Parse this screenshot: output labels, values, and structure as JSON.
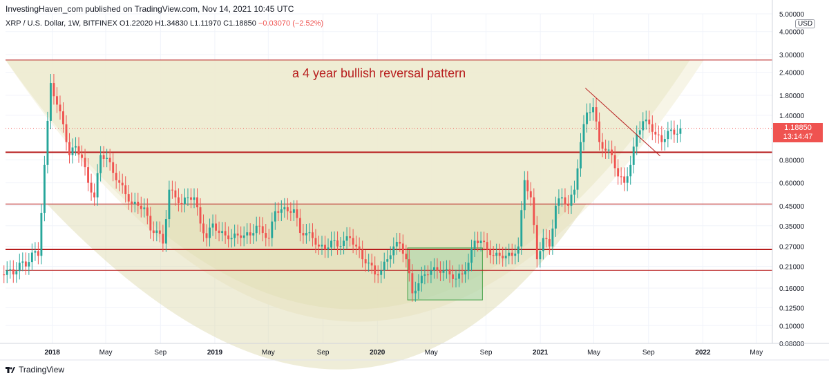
{
  "header": {
    "published": "InvestingHaven_com published on TradingView.com, Nov 14, 2021 10:45 UTC",
    "symbol": "XRP / U.S. Dollar, 1W, BITFINEX",
    "open": "O1.22020",
    "high": "H1.34830",
    "low": "L1.11970",
    "close": "C1.18850",
    "change": "−0.03070 (−2.52%)"
  },
  "annotation": "a 4 year bullish reversal pattern",
  "footer": {
    "brand": "TradingView"
  },
  "price_axis": {
    "currency": "USD",
    "last_price": "1.18850",
    "countdown": "13:14:47"
  },
  "colors": {
    "up": "#26a69a",
    "down": "#ef5350",
    "level_line": "#b71c1c",
    "bowl_fill": "#e9e6c4",
    "box_fill": "#a5d6a7",
    "text": "#131722"
  },
  "chart_data": {
    "type": "candlestick",
    "title": "XRP / U.S. Dollar, 1W, BITFINEX",
    "scale": "log",
    "ylim": [
      0.08,
      5.0
    ],
    "y_ticks": [
      "5.00000",
      "4.00000",
      "3.00000",
      "2.40000",
      "1.80000",
      "1.40000",
      "0.80000",
      "0.60000",
      "0.45000",
      "0.35000",
      "0.27000",
      "0.21000",
      "0.16000",
      "0.12500",
      "0.10000",
      "0.08000"
    ],
    "x_ticks": [
      "2018",
      "May",
      "Sep",
      "2019",
      "May",
      "Sep",
      "2020",
      "May",
      "Sep",
      "2021",
      "May",
      "Sep",
      "2022",
      "May"
    ],
    "xlim": [
      "2017-09-18",
      "2022-06-06"
    ],
    "horizontal_levels": [
      2.8,
      0.88,
      0.46,
      0.26,
      0.2
    ],
    "trendline": {
      "from": {
        "date": "2021-04-12",
        "price": 1.97
      },
      "to": {
        "date": "2021-09-27",
        "price": 0.84
      }
    },
    "box": {
      "from_date": "2020-03-09",
      "to_date": "2020-08-24",
      "top": 0.265,
      "bottom": 0.138
    },
    "bowl": {
      "left": {
        "date": "2017-09-18",
        "price": 2.8
      },
      "bottom": {
        "date": "2019-11-25",
        "price": 0.105
      },
      "right": {
        "date": "2022-01-03",
        "price": 2.8
      }
    },
    "candles_weekly_close": [
      {
        "date": "2017-09-18",
        "close": 0.2
      },
      {
        "date": "2017-10-02",
        "close": 0.19
      },
      {
        "date": "2017-10-16",
        "close": 0.22
      },
      {
        "date": "2017-10-30",
        "close": 0.21
      },
      {
        "date": "2017-11-13",
        "close": 0.25
      },
      {
        "date": "2017-11-27",
        "close": 0.24
      },
      {
        "date": "2017-12-11",
        "close": 0.75
      },
      {
        "date": "2017-12-25",
        "close": 2.1
      },
      {
        "date": "2018-01-08",
        "close": 1.6
      },
      {
        "date": "2018-01-22",
        "close": 1.25
      },
      {
        "date": "2018-02-05",
        "close": 0.85
      },
      {
        "date": "2018-02-19",
        "close": 0.95
      },
      {
        "date": "2018-03-05",
        "close": 0.82
      },
      {
        "date": "2018-03-19",
        "close": 0.6
      },
      {
        "date": "2018-04-02",
        "close": 0.5
      },
      {
        "date": "2018-04-16",
        "close": 0.85
      },
      {
        "date": "2018-04-30",
        "close": 0.82
      },
      {
        "date": "2018-05-14",
        "close": 0.68
      },
      {
        "date": "2018-05-28",
        "close": 0.6
      },
      {
        "date": "2018-06-11",
        "close": 0.52
      },
      {
        "date": "2018-06-25",
        "close": 0.46
      },
      {
        "date": "2018-07-09",
        "close": 0.45
      },
      {
        "date": "2018-07-23",
        "close": 0.44
      },
      {
        "date": "2018-08-06",
        "close": 0.33
      },
      {
        "date": "2018-08-20",
        "close": 0.33
      },
      {
        "date": "2018-09-03",
        "close": 0.28
      },
      {
        "date": "2018-09-17",
        "close": 0.55
      },
      {
        "date": "2018-10-01",
        "close": 0.5
      },
      {
        "date": "2018-10-15",
        "close": 0.46
      },
      {
        "date": "2018-10-29",
        "close": 0.5
      },
      {
        "date": "2018-11-12",
        "close": 0.5
      },
      {
        "date": "2018-11-26",
        "close": 0.36
      },
      {
        "date": "2018-12-10",
        "close": 0.3
      },
      {
        "date": "2018-12-24",
        "close": 0.36
      },
      {
        "date": "2019-01-07",
        "close": 0.32
      },
      {
        "date": "2019-01-21",
        "close": 0.31
      },
      {
        "date": "2019-02-04",
        "close": 0.3
      },
      {
        "date": "2019-02-18",
        "close": 0.31
      },
      {
        "date": "2019-03-04",
        "close": 0.31
      },
      {
        "date": "2019-03-18",
        "close": 0.31
      },
      {
        "date": "2019-04-01",
        "close": 0.35
      },
      {
        "date": "2019-04-15",
        "close": 0.32
      },
      {
        "date": "2019-04-29",
        "close": 0.3
      },
      {
        "date": "2019-05-13",
        "close": 0.42
      },
      {
        "date": "2019-05-27",
        "close": 0.43
      },
      {
        "date": "2019-06-10",
        "close": 0.42
      },
      {
        "date": "2019-06-24",
        "close": 0.43
      },
      {
        "date": "2019-07-08",
        "close": 0.32
      },
      {
        "date": "2019-07-22",
        "close": 0.32
      },
      {
        "date": "2019-08-05",
        "close": 0.3
      },
      {
        "date": "2019-08-19",
        "close": 0.27
      },
      {
        "date": "2019-09-02",
        "close": 0.26
      },
      {
        "date": "2019-09-16",
        "close": 0.29
      },
      {
        "date": "2019-09-30",
        "close": 0.27
      },
      {
        "date": "2019-10-14",
        "close": 0.29
      },
      {
        "date": "2019-10-28",
        "close": 0.3
      },
      {
        "date": "2019-11-11",
        "close": 0.27
      },
      {
        "date": "2019-11-25",
        "close": 0.23
      },
      {
        "date": "2019-12-09",
        "close": 0.22
      },
      {
        "date": "2019-12-23",
        "close": 0.19
      },
      {
        "date": "2020-01-06",
        "close": 0.2
      },
      {
        "date": "2020-01-20",
        "close": 0.23
      },
      {
        "date": "2020-02-03",
        "close": 0.27
      },
      {
        "date": "2020-02-17",
        "close": 0.28
      },
      {
        "date": "2020-03-02",
        "close": 0.23
      },
      {
        "date": "2020-03-16",
        "close": 0.15
      },
      {
        "date": "2020-03-30",
        "close": 0.17
      },
      {
        "date": "2020-04-13",
        "close": 0.19
      },
      {
        "date": "2020-04-27",
        "close": 0.2
      },
      {
        "date": "2020-05-11",
        "close": 0.2
      },
      {
        "date": "2020-05-25",
        "close": 0.2
      },
      {
        "date": "2020-06-08",
        "close": 0.19
      },
      {
        "date": "2020-06-22",
        "close": 0.18
      },
      {
        "date": "2020-07-06",
        "close": 0.19
      },
      {
        "date": "2020-07-20",
        "close": 0.22
      },
      {
        "date": "2020-08-03",
        "close": 0.29
      },
      {
        "date": "2020-08-17",
        "close": 0.29
      },
      {
        "date": "2020-08-31",
        "close": 0.26
      },
      {
        "date": "2020-09-14",
        "close": 0.24
      },
      {
        "date": "2020-09-28",
        "close": 0.24
      },
      {
        "date": "2020-10-12",
        "close": 0.24
      },
      {
        "date": "2020-10-26",
        "close": 0.24
      },
      {
        "date": "2020-11-09",
        "close": 0.27
      },
      {
        "date": "2020-11-23",
        "close": 0.62
      },
      {
        "date": "2020-12-07",
        "close": 0.5
      },
      {
        "date": "2020-12-21",
        "close": 0.23
      },
      {
        "date": "2021-01-04",
        "close": 0.3
      },
      {
        "date": "2021-01-18",
        "close": 0.27
      },
      {
        "date": "2021-02-01",
        "close": 0.45
      },
      {
        "date": "2021-02-15",
        "close": 0.5
      },
      {
        "date": "2021-03-01",
        "close": 0.45
      },
      {
        "date": "2021-03-15",
        "close": 0.55
      },
      {
        "date": "2021-03-29",
        "close": 1.0
      },
      {
        "date": "2021-04-12",
        "close": 1.45
      },
      {
        "date": "2021-04-26",
        "close": 1.55
      },
      {
        "date": "2021-05-10",
        "close": 1.0
      },
      {
        "date": "2021-05-24",
        "close": 0.9
      },
      {
        "date": "2021-06-07",
        "close": 0.85
      },
      {
        "date": "2021-06-21",
        "close": 0.65
      },
      {
        "date": "2021-07-05",
        "close": 0.6
      },
      {
        "date": "2021-07-19",
        "close": 0.75
      },
      {
        "date": "2021-08-02",
        "close": 1.1
      },
      {
        "date": "2021-08-16",
        "close": 1.3
      },
      {
        "date": "2021-08-30",
        "close": 1.25
      },
      {
        "date": "2021-09-13",
        "close": 1.1
      },
      {
        "date": "2021-09-27",
        "close": 1.0
      },
      {
        "date": "2021-10-11",
        "close": 1.15
      },
      {
        "date": "2021-10-25",
        "close": 1.1
      },
      {
        "date": "2021-11-08",
        "close": 1.1885
      }
    ]
  }
}
